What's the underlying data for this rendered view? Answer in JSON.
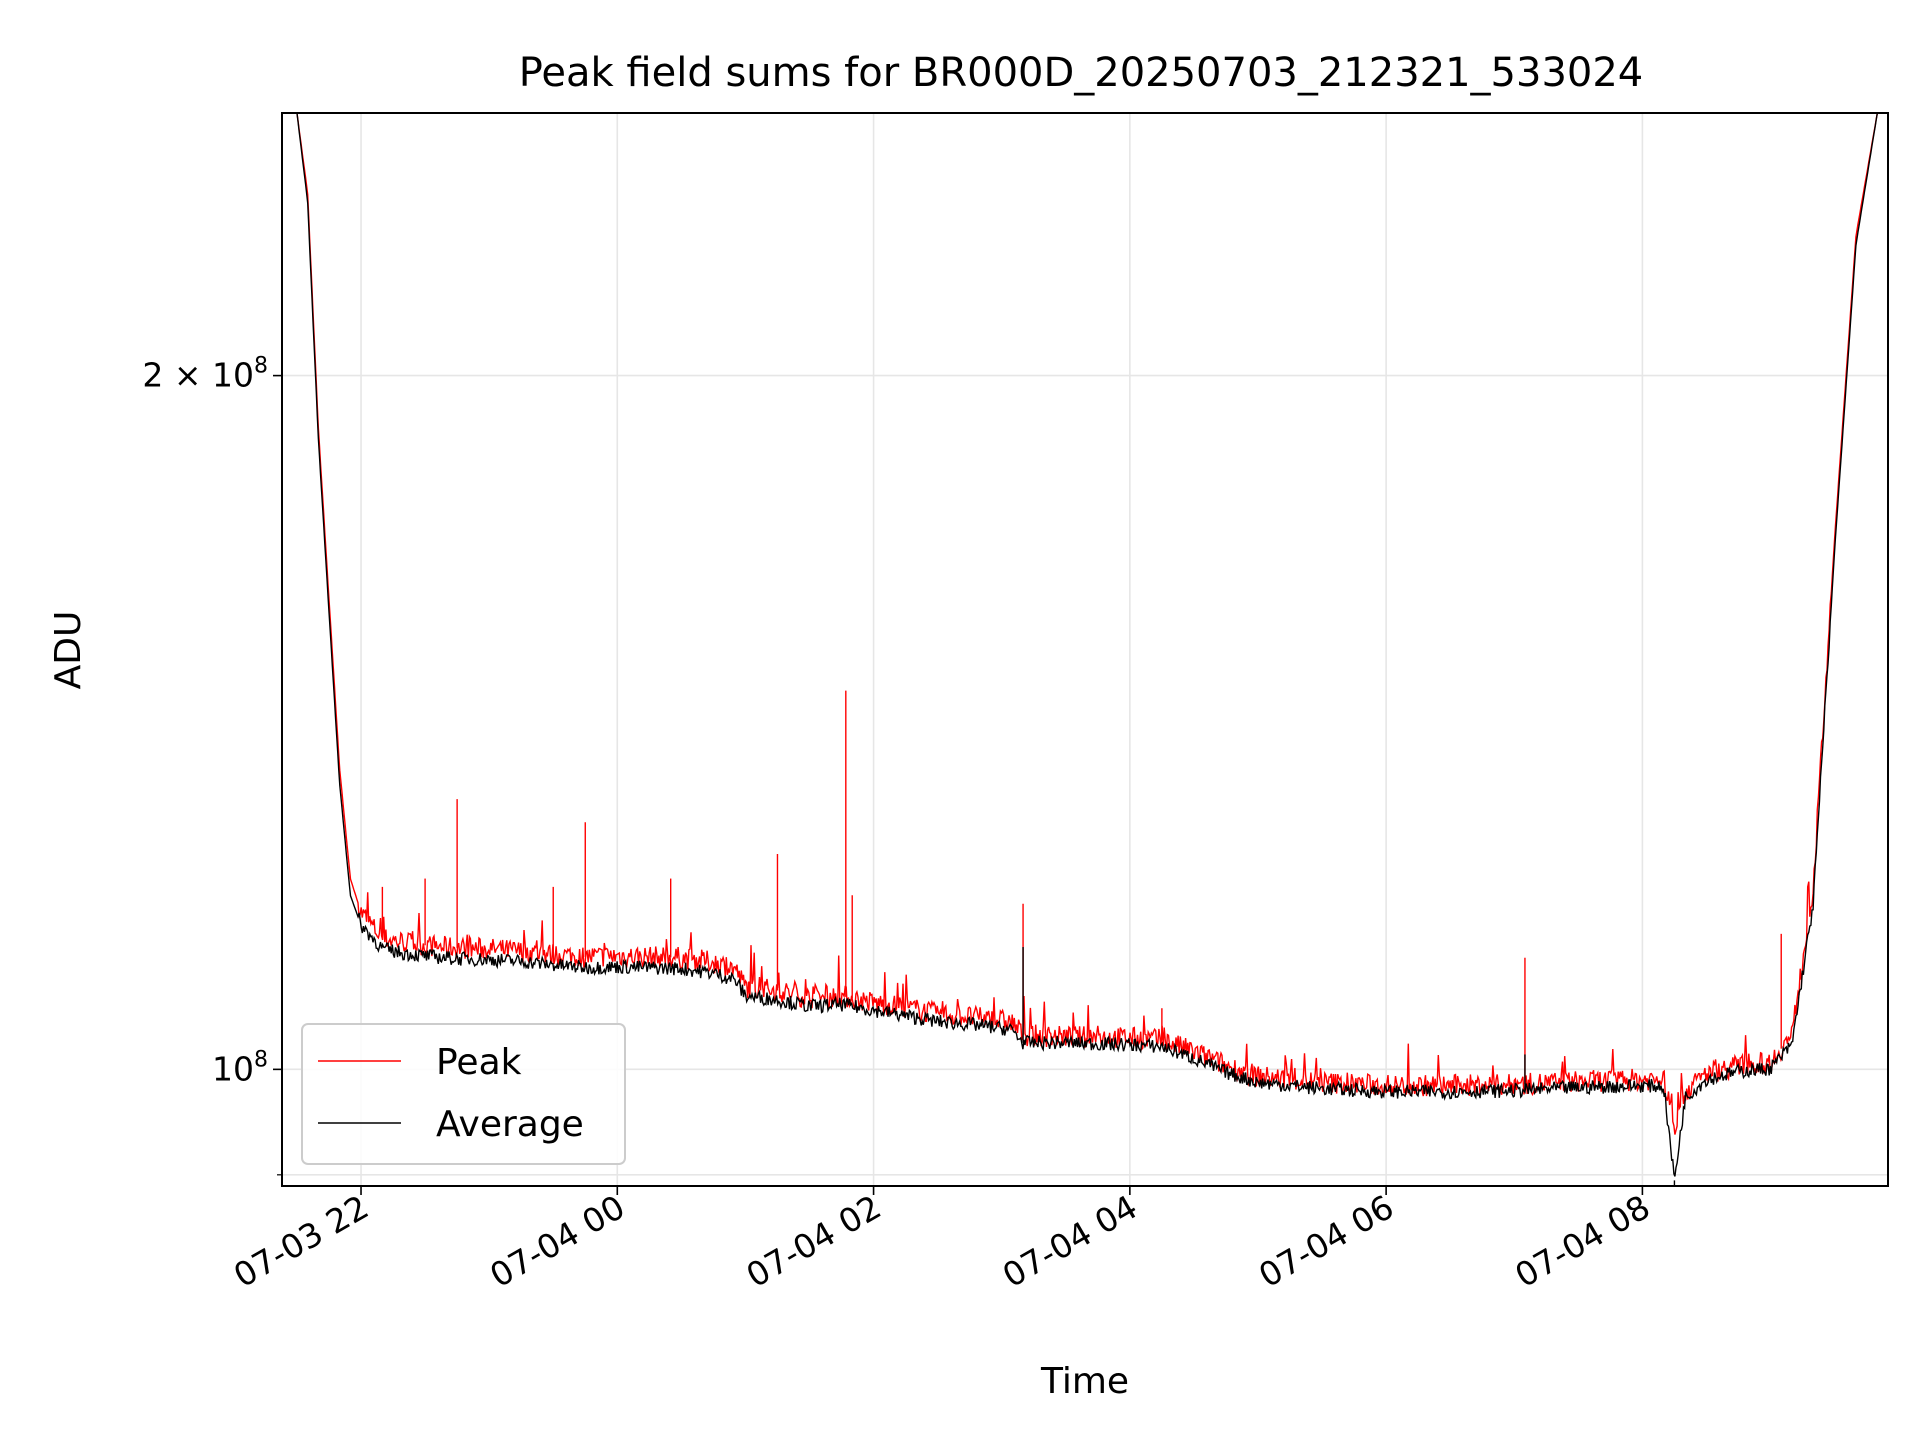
{
  "chart_data": {
    "type": "line",
    "title": "Peak field sums for BR000D_20250703_212321_533024",
    "xlabel": "Time",
    "ylabel": "ADU",
    "x_unit": "hours",
    "xlim": [
      "07-03 21:23",
      "07-04 09:55"
    ],
    "ylim": [
      89000000.0,
      260000000.0
    ],
    "yscale": "log",
    "x_ticks": [
      {
        "value": "07-03 22:00",
        "label": "07-03 22"
      },
      {
        "value": "07-04 00:00",
        "label": "07-04 00"
      },
      {
        "value": "07-04 02:00",
        "label": "07-04 02"
      },
      {
        "value": "07-04 04:00",
        "label": "07-04 04"
      },
      {
        "value": "07-04 06:00",
        "label": "07-04 06"
      },
      {
        "value": "07-04 08:00",
        "label": "07-04 08"
      }
    ],
    "y_ticks": [
      {
        "value": 100000000.0,
        "mant": "",
        "exp": "8",
        "prefix": "10"
      },
      {
        "value": 200000000.0,
        "mant": "2 × ",
        "exp": "8",
        "prefix": "10"
      }
    ],
    "grid": true,
    "legend_position": "lower-left",
    "series": [
      {
        "name": "Peak",
        "color": "#ff0000",
        "x": [
          "07-03 21:23",
          "07-03 21:30",
          "07-03 21:35",
          "07-03 21:40",
          "07-03 21:45",
          "07-03 21:50",
          "07-03 21:55",
          "07-03 22:00",
          "07-03 22:10",
          "07-03 22:20",
          "07-03 22:30",
          "07-03 22:45",
          "07-03 23:00",
          "07-03 23:15",
          "07-03 23:30",
          "07-03 23:45",
          "07-04 00:00",
          "07-04 00:15",
          "07-04 00:30",
          "07-04 00:45",
          "07-04 00:55",
          "07-04 01:00",
          "07-04 01:15",
          "07-04 01:30",
          "07-04 01:45",
          "07-04 02:00",
          "07-04 02:15",
          "07-04 02:30",
          "07-04 02:45",
          "07-04 03:00",
          "07-04 03:05",
          "07-04 03:10",
          "07-04 03:30",
          "07-04 03:45",
          "07-04 04:00",
          "07-04 04:15",
          "07-04 04:30",
          "07-04 04:45",
          "07-04 05:00",
          "07-04 05:30",
          "07-04 06:00",
          "07-04 06:30",
          "07-04 07:00",
          "07-04 07:30",
          "07-04 08:00",
          "07-04 08:10",
          "07-04 08:15",
          "07-04 08:20",
          "07-04 08:30",
          "07-04 08:45",
          "07-04 09:00",
          "07-04 09:10",
          "07-04 09:20",
          "07-04 09:30",
          "07-04 09:40",
          "07-04 09:50",
          "07-04 09:55"
        ],
        "values": [
          260000000.0,
          260000000.0,
          240000000.0,
          190000000.0,
          160000000.0,
          135000000.0,
          121000000.0,
          117000000.0,
          114000000.0,
          113600000.0,
          113200000.0,
          112900000.0,
          112800000.0,
          112500000.0,
          112200000.0,
          111900000.0,
          112000000.0,
          111900000.0,
          111800000.0,
          111300000.0,
          110600000.0,
          108600000.0,
          108200000.0,
          107400000.0,
          107600000.0,
          106900000.0,
          106400000.0,
          105700000.0,
          105400000.0,
          105000000.0,
          104800000.0,
          103500000.0,
          103300000.0,
          103300000.0,
          103200000.0,
          103000000.0,
          101800000.0,
          100400000.0,
          99300000.0,
          98700000.0,
          98400000.0,
          98400000.0,
          98500000.0,
          98800000.0,
          99000000.0,
          99000000.0,
          94500000.0,
          97800000.0,
          99600000.0,
          100400000.0,
          100700000.0,
          103500000.0,
          120000000.0,
          170000000.0,
          230000000.0,
          260000000.0,
          260000000.0
        ],
        "spikes": [
          {
            "x": "07-03 22:10",
            "y": 120000000.0
          },
          {
            "x": "07-03 22:30",
            "y": 121000000.0
          },
          {
            "x": "07-03 22:45",
            "y": 131000000.0
          },
          {
            "x": "07-03 23:30",
            "y": 120000000.0
          },
          {
            "x": "07-03 23:45",
            "y": 128000000.0
          },
          {
            "x": "07-04 00:25",
            "y": 121000000.0
          },
          {
            "x": "07-04 01:15",
            "y": 124000000.0
          },
          {
            "x": "07-04 01:47",
            "y": 146000000.0
          },
          {
            "x": "07-04 01:50",
            "y": 119000000.0
          },
          {
            "x": "07-04 03:10",
            "y": 118000000.0
          },
          {
            "x": "07-04 04:15",
            "y": 106300000.0
          },
          {
            "x": "07-04 07:05",
            "y": 111800000.0
          },
          {
            "x": "07-04 09:05",
            "y": 114500000.0
          }
        ]
      },
      {
        "name": "Average",
        "color": "#000000",
        "x": [
          "07-03 21:23",
          "07-03 21:30",
          "07-03 21:35",
          "07-03 21:40",
          "07-03 21:45",
          "07-03 21:50",
          "07-03 21:55",
          "07-03 22:00",
          "07-03 22:10",
          "07-03 22:20",
          "07-03 22:30",
          "07-03 22:45",
          "07-03 23:00",
          "07-03 23:15",
          "07-03 23:30",
          "07-03 23:45",
          "07-04 00:00",
          "07-04 00:15",
          "07-04 00:30",
          "07-04 00:45",
          "07-04 00:55",
          "07-04 01:00",
          "07-04 01:15",
          "07-04 01:30",
          "07-04 01:45",
          "07-04 02:00",
          "07-04 02:15",
          "07-04 02:30",
          "07-04 02:45",
          "07-04 03:00",
          "07-04 03:05",
          "07-04 03:10",
          "07-04 03:30",
          "07-04 03:45",
          "07-04 04:00",
          "07-04 04:15",
          "07-04 04:30",
          "07-04 04:45",
          "07-04 05:00",
          "07-04 05:30",
          "07-04 06:00",
          "07-04 06:30",
          "07-04 07:00",
          "07-04 07:30",
          "07-04 08:00",
          "07-04 08:10",
          "07-04 08:15",
          "07-04 08:20",
          "07-04 08:30",
          "07-04 08:45",
          "07-04 09:00",
          "07-04 09:10",
          "07-04 09:20",
          "07-04 09:30",
          "07-04 09:40",
          "07-04 09:50",
          "07-04 09:55"
        ],
        "values": [
          260000000.0,
          260000000.0,
          238000000.0,
          188000000.0,
          158000000.0,
          133000000.0,
          119000000.0,
          115500000.0,
          112800000.0,
          112300000.0,
          112000000.0,
          111700000.0,
          111600000.0,
          111400000.0,
          111000000.0,
          110700000.0,
          110800000.0,
          110700000.0,
          110600000.0,
          110100000.0,
          109400000.0,
          107600000.0,
          107200000.0,
          106500000.0,
          106700000.0,
          106100000.0,
          105500000.0,
          104900000.0,
          104600000.0,
          104200000.0,
          104000000.0,
          102700000.0,
          102700000.0,
          102600000.0,
          102500000.0,
          102300000.0,
          101100000.0,
          99700000.0,
          98700000.0,
          98100000.0,
          97800000.0,
          97800000.0,
          97900000.0,
          98200000.0,
          98400000.0,
          98300000.0,
          89500000.0,
          97200000.0,
          99000000.0,
          99800000.0,
          100100000.0,
          102500000.0,
          118000000.0,
          168000000.0,
          228000000.0,
          260000000.0,
          260000000.0
        ],
        "spikes": [
          {
            "x": "07-04 03:10",
            "y": 113000000.0
          },
          {
            "x": "07-04 07:05",
            "y": 101500000.0
          },
          {
            "x": "07-04 08:15",
            "y": 89000000.0
          }
        ]
      }
    ]
  }
}
